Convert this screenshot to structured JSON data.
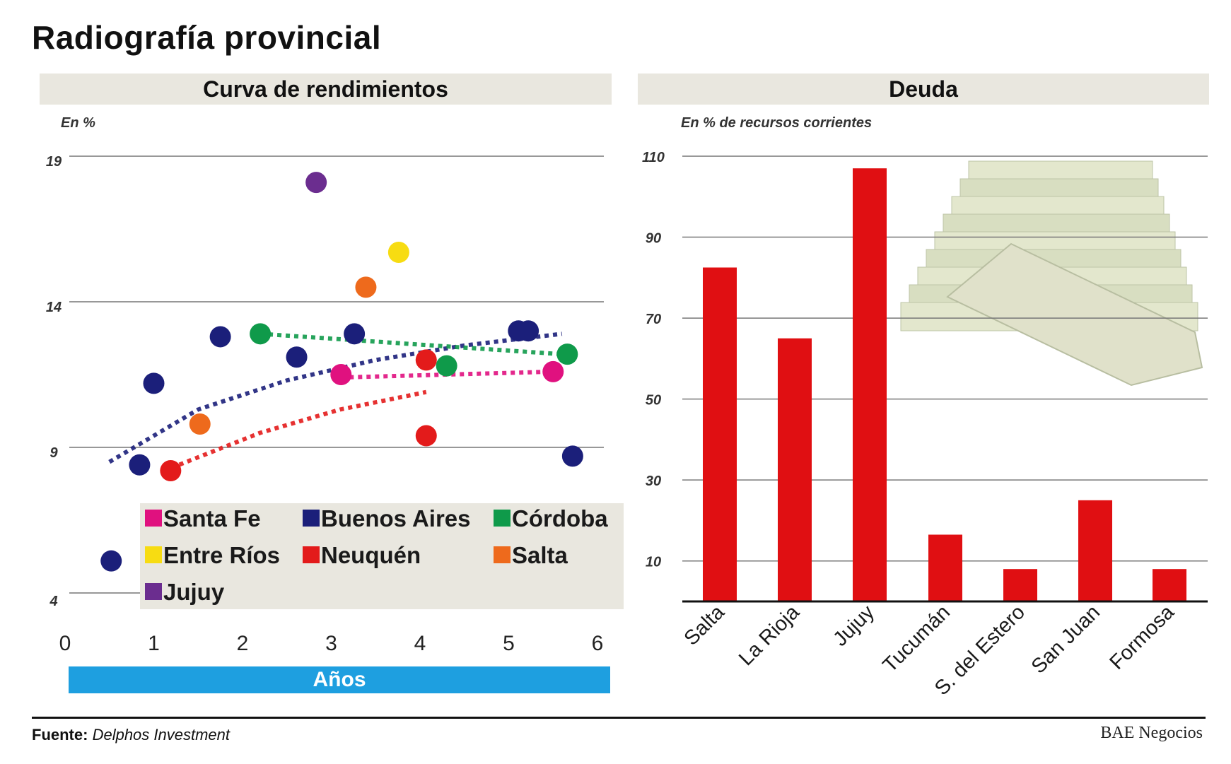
{
  "title": "Radiografía provincial",
  "footer": {
    "source_label": "Fuente:",
    "source": "Delphos Investment",
    "brand": "BAE Negocios"
  },
  "colors": {
    "santa_fe": "#e0117f",
    "buenos_aires": "#1b1f7a",
    "cordoba": "#0f9a4a",
    "entre_rios": "#f7dc12",
    "neuquen": "#e31b1b",
    "salta": "#ee6a1c",
    "jujuy": "#6b2d8f",
    "bar": "#e00f12",
    "axis_band": "#1e9fe0"
  },
  "chart_data": [
    {
      "type": "scatter",
      "title": "Curva de rendimientos",
      "ylabel": "En %",
      "xlabel": "Años",
      "xlim": [
        0,
        6
      ],
      "ylim": [
        4,
        19
      ],
      "xticks": [
        "0",
        "1",
        "2",
        "3",
        "4",
        "5",
        "6"
      ],
      "yticks": [
        "4",
        "9",
        "14",
        "19"
      ],
      "grid": true,
      "legend_position": "bottom-right",
      "series": [
        {
          "name": "Santa Fe",
          "color": "#e0117f",
          "points": [
            [
              3.11,
              11.5
            ],
            [
              5.5,
              11.6
            ]
          ],
          "trend": [
            [
              3.11,
              11.4
            ],
            [
              5.5,
              11.6
            ]
          ]
        },
        {
          "name": "Buenos Aires",
          "color": "#1b1f7a",
          "points": [
            [
              0.52,
              5.1
            ],
            [
              0.84,
              8.4
            ],
            [
              1.0,
              11.2
            ],
            [
              1.75,
              12.8
            ],
            [
              2.61,
              12.1
            ],
            [
              3.26,
              12.9
            ],
            [
              5.11,
              13.0
            ],
            [
              5.22,
              13.0
            ],
            [
              5.72,
              8.7
            ]
          ],
          "trend": [
            [
              0.5,
              8.5
            ],
            [
              1.5,
              10.3
            ],
            [
              2.5,
              11.3
            ],
            [
              3.5,
              12.0
            ],
            [
              4.5,
              12.5
            ],
            [
              5.6,
              12.9
            ]
          ]
        },
        {
          "name": "Córdoba",
          "color": "#0f9a4a",
          "points": [
            [
              2.2,
              12.9
            ],
            [
              4.3,
              11.8
            ],
            [
              5.66,
              12.2
            ]
          ],
          "trend": [
            [
              2.2,
              12.9
            ],
            [
              5.6,
              12.2
            ]
          ]
        },
        {
          "name": "Entre Ríos",
          "color": "#f7dc12",
          "points": [
            [
              3.76,
              15.7
            ]
          ]
        },
        {
          "name": "Neuquén",
          "color": "#e31b1b",
          "points": [
            [
              1.19,
              8.2
            ],
            [
              4.07,
              12.0
            ],
            [
              4.07,
              9.4
            ]
          ],
          "trend": [
            [
              1.2,
              8.3
            ],
            [
              2.2,
              9.5
            ],
            [
              3.1,
              10.3
            ],
            [
              4.07,
              10.9
            ]
          ]
        },
        {
          "name": "Salta",
          "color": "#ee6a1c",
          "points": [
            [
              1.52,
              9.8
            ],
            [
              3.39,
              14.5
            ]
          ]
        },
        {
          "name": "Jujuy",
          "color": "#6b2d8f",
          "points": [
            [
              2.83,
              18.1
            ]
          ]
        }
      ]
    },
    {
      "type": "bar",
      "title": "Deuda",
      "ylabel": "En % de recursos corrientes",
      "ylim": [
        0,
        110
      ],
      "yticks": [
        "10",
        "30",
        "50",
        "70",
        "90",
        "110"
      ],
      "grid": true,
      "categories": [
        "Salta",
        "La Rioja",
        "Jujuy",
        "Tucumán",
        "S. del Estero",
        "San Juan",
        "Formosa"
      ],
      "values": [
        82.5,
        65,
        107,
        16.5,
        8,
        25,
        8
      ]
    }
  ]
}
